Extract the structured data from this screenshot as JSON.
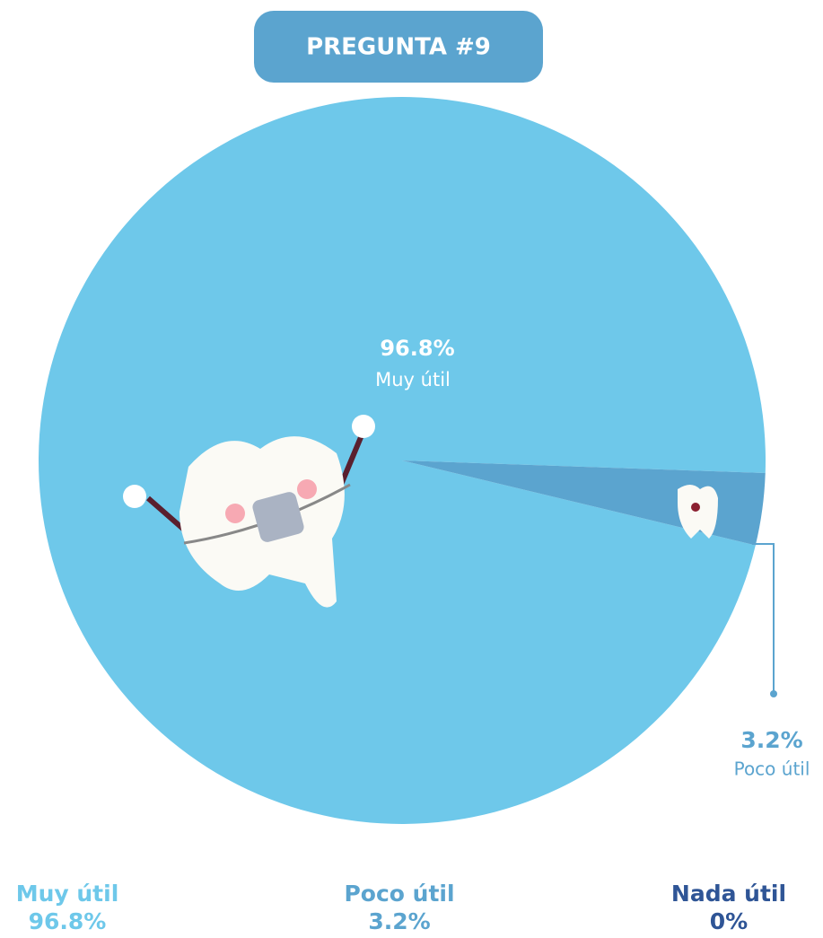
{
  "chart_data": {
    "type": "pie",
    "title": "PREGUNTA #9",
    "categories": [
      "Muy útil",
      "Poco útil",
      "Nada útil"
    ],
    "values": [
      96.8,
      3.2,
      0
    ],
    "value_labels": [
      "96.8%",
      "3.2%",
      "0%"
    ],
    "colors": [
      "#6ec8ea",
      "#5ba4cf",
      "#2f5596"
    ]
  }
}
